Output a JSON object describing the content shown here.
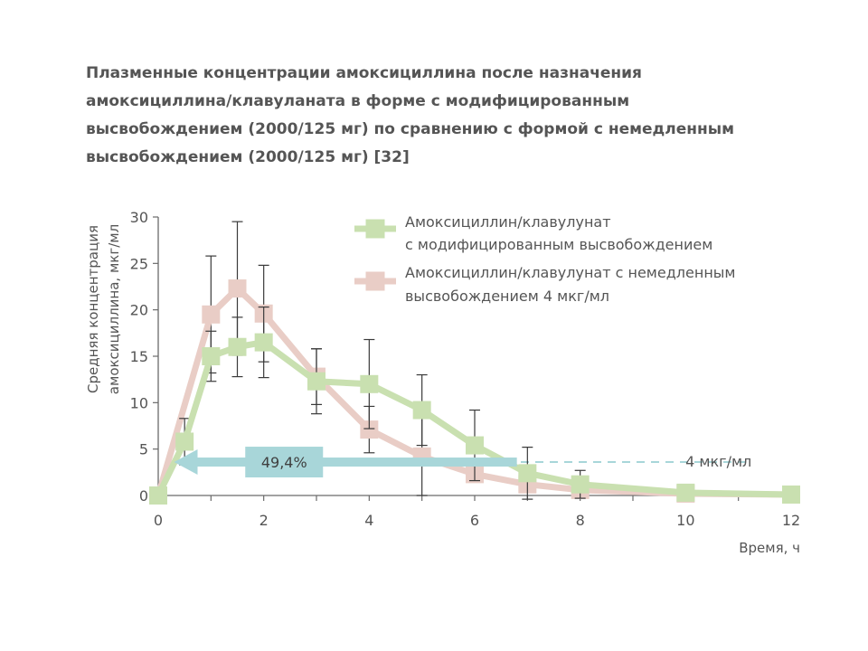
{
  "title_lines": [
    "Плазменные концентрации амоксициллина после назначения",
    "амоксициллина/клавуланата в форме с модифицированным",
    "высвобождением (2000/125 мг) по сравнению с формой с немедленным",
    "высвобождением (2000/125 мг) [32]"
  ],
  "chart_data": {
    "type": "line",
    "ylabel_lines": [
      "Средняя концентрация",
      "амоксициллина, мкг/мл"
    ],
    "xlabel": "Время, ч",
    "xlim": [
      0,
      12
    ],
    "ylim": [
      0,
      30
    ],
    "x_ticks": [
      0,
      2,
      4,
      6,
      8,
      10,
      12
    ],
    "y_ticks": [
      0,
      5,
      10,
      15,
      20,
      25,
      30
    ],
    "legend_position": "top-right",
    "series": [
      {
        "name_lines": [
          "Амоксициллин/клавулунат",
          "с модифицированным высвобождением"
        ],
        "color": "#c9e0b0",
        "x": [
          0,
          0.5,
          1,
          1.5,
          2,
          3,
          4,
          5,
          6,
          7,
          8,
          10,
          12
        ],
        "y": [
          0,
          5.8,
          15,
          16,
          16.5,
          12.3,
          12,
          9.2,
          5.4,
          2.4,
          1.2,
          0.3,
          0.1
        ],
        "err": [
          0,
          2.5,
          2.7,
          3.2,
          3.8,
          3.5,
          4.8,
          3.8,
          3.8,
          2.8,
          1.5,
          0,
          0
        ]
      },
      {
        "name_lines": [
          "Амоксициллин/клавулунат с немедленным",
          "высвобождением 4 мкг/мл"
        ],
        "color": "#e9cdc6",
        "x": [
          0,
          1,
          1.5,
          2,
          3,
          4,
          5,
          6,
          7,
          8,
          10,
          12
        ],
        "y": [
          0,
          19.5,
          22.3,
          19.6,
          12.8,
          7.1,
          4.2,
          2.3,
          1.2,
          0.6,
          0.2,
          0.1
        ],
        "err": [
          0,
          6.3,
          7.2,
          5.2,
          3.0,
          2.5,
          4.2,
          0,
          0,
          0,
          0,
          0
        ]
      }
    ],
    "reference_line": {
      "y": 3.6,
      "label": "4 мкг/мл",
      "color": "#a8d6d9"
    },
    "annotation": {
      "label": "49,4%",
      "x_from": 0.3,
      "x_to": 6.8,
      "y": 3.6,
      "color": "#a8d6d9"
    }
  }
}
